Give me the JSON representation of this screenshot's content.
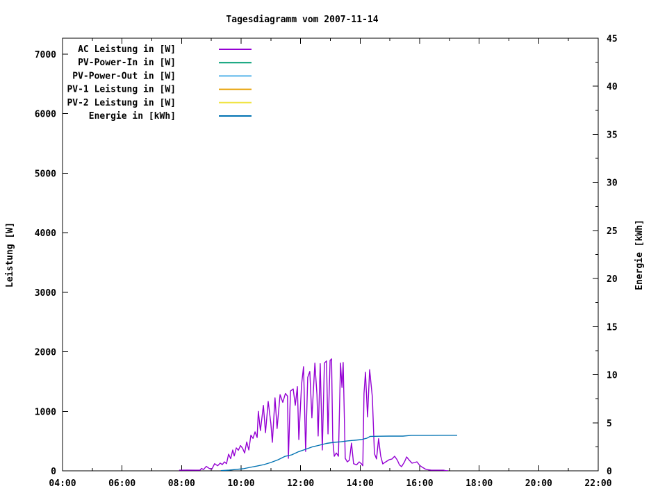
{
  "chart_data": {
    "type": "line",
    "title": "Tagesdiagramm vom 2007-11-14",
    "background_color": "#ffffff",
    "axis_color": "#000000",
    "grid": false,
    "legend_position": "top-left-inside",
    "x_axis": {
      "min": 4,
      "max": 22,
      "major_ticks": [
        {
          "t": 4,
          "label": "04:00"
        },
        {
          "t": 6,
          "label": "06:00"
        },
        {
          "t": 8,
          "label": "08:00"
        },
        {
          "t": 10,
          "label": "10:00"
        },
        {
          "t": 12,
          "label": "12:00"
        },
        {
          "t": 14,
          "label": "14:00"
        },
        {
          "t": 16,
          "label": "16:00"
        },
        {
          "t": 18,
          "label": "18:00"
        },
        {
          "t": 20,
          "label": "20:00"
        },
        {
          "t": 22,
          "label": "22:00"
        }
      ],
      "minor_ticks": [
        5,
        7,
        9,
        11,
        13,
        15,
        17,
        19,
        21
      ]
    },
    "y_axis": {
      "label": "Leistung [W]",
      "min": 0,
      "max": 7268,
      "major_ticks": [
        {
          "v": 0,
          "label": "0"
        },
        {
          "v": 1000,
          "label": "1000"
        },
        {
          "v": 2000,
          "label": "2000"
        },
        {
          "v": 3000,
          "label": "3000"
        },
        {
          "v": 4000,
          "label": "4000"
        },
        {
          "v": 5000,
          "label": "5000"
        },
        {
          "v": 6000,
          "label": "6000"
        },
        {
          "v": 7000,
          "label": "7000"
        }
      ]
    },
    "y2_axis": {
      "label": "Energie [kWh]",
      "min": 0,
      "max": 45,
      "major_ticks": [
        {
          "v": 0,
          "label": "0"
        },
        {
          "v": 5,
          "label": "5"
        },
        {
          "v": 10,
          "label": "10"
        },
        {
          "v": 15,
          "label": "15"
        },
        {
          "v": 20,
          "label": "20"
        },
        {
          "v": 25,
          "label": "25"
        },
        {
          "v": 30,
          "label": "30"
        },
        {
          "v": 35,
          "label": "35"
        },
        {
          "v": 40,
          "label": "40"
        },
        {
          "v": 45,
          "label": "45"
        }
      ],
      "minor_ticks": [
        2.5,
        7.5,
        12.5,
        17.5,
        22.5,
        27.5,
        32.5,
        37.5,
        42.5
      ]
    },
    "legend": [
      {
        "label": "AC Leistung in [W]",
        "color": "#9400d3"
      },
      {
        "label": "PV-Power-In in [W]",
        "color": "#009e73"
      },
      {
        "label": "PV-Power-Out in [W]",
        "color": "#56b4e9"
      },
      {
        "label": "PV-1 Leistung in [W]",
        "color": "#e69f00"
      },
      {
        "label": "PV-2 Leistung in [W]",
        "color": "#f0e442"
      },
      {
        "label": "Energie in [kWh]",
        "color": "#0072b2"
      }
    ],
    "series": [
      {
        "name": "AC Leistung in [W]",
        "yaxis": "y1",
        "color": "#9400d3",
        "points": [
          [
            7.92,
            10
          ],
          [
            8.2,
            12
          ],
          [
            8.45,
            10
          ],
          [
            8.62,
            12
          ],
          [
            8.67,
            40
          ],
          [
            8.74,
            22
          ],
          [
            8.83,
            75
          ],
          [
            8.93,
            40
          ],
          [
            9.02,
            30
          ],
          [
            9.11,
            120
          ],
          [
            9.21,
            85
          ],
          [
            9.3,
            130
          ],
          [
            9.37,
            105
          ],
          [
            9.44,
            150
          ],
          [
            9.51,
            120
          ],
          [
            9.58,
            280
          ],
          [
            9.65,
            205
          ],
          [
            9.72,
            350
          ],
          [
            9.77,
            250
          ],
          [
            9.84,
            385
          ],
          [
            9.91,
            345
          ],
          [
            9.98,
            425
          ],
          [
            10.05,
            380
          ],
          [
            10.12,
            300
          ],
          [
            10.19,
            485
          ],
          [
            10.26,
            350
          ],
          [
            10.33,
            600
          ],
          [
            10.4,
            545
          ],
          [
            10.47,
            655
          ],
          [
            10.54,
            560
          ],
          [
            10.58,
            1000
          ],
          [
            10.65,
            675
          ],
          [
            10.75,
            1100
          ],
          [
            10.82,
            640
          ],
          [
            10.91,
            1165
          ],
          [
            11.0,
            800
          ],
          [
            11.05,
            480
          ],
          [
            11.14,
            1225
          ],
          [
            11.21,
            710
          ],
          [
            11.31,
            1280
          ],
          [
            11.4,
            1150
          ],
          [
            11.49,
            1300
          ],
          [
            11.56,
            1255
          ],
          [
            11.59,
            210
          ],
          [
            11.66,
            1340
          ],
          [
            11.75,
            1375
          ],
          [
            11.82,
            1100
          ],
          [
            11.89,
            1415
          ],
          [
            11.94,
            525
          ],
          [
            12.03,
            1445
          ],
          [
            12.1,
            1750
          ],
          [
            12.17,
            325
          ],
          [
            12.24,
            1570
          ],
          [
            12.31,
            1670
          ],
          [
            12.38,
            890
          ],
          [
            12.48,
            1810
          ],
          [
            12.55,
            1280
          ],
          [
            12.59,
            585
          ],
          [
            12.66,
            1800
          ],
          [
            12.73,
            350
          ],
          [
            12.8,
            1810
          ],
          [
            12.87,
            1845
          ],
          [
            12.92,
            620
          ],
          [
            12.99,
            1855
          ],
          [
            13.04,
            1880
          ],
          [
            13.08,
            520
          ],
          [
            13.13,
            245
          ],
          [
            13.2,
            300
          ],
          [
            13.27,
            245
          ],
          [
            13.34,
            1810
          ],
          [
            13.39,
            1400
          ],
          [
            13.43,
            1820
          ],
          [
            13.5,
            210
          ],
          [
            13.57,
            150
          ],
          [
            13.64,
            180
          ],
          [
            13.71,
            465
          ],
          [
            13.78,
            120
          ],
          [
            13.88,
            100
          ],
          [
            13.97,
            150
          ],
          [
            14.04,
            120
          ],
          [
            14.09,
            85
          ],
          [
            14.13,
            1300
          ],
          [
            14.18,
            1655
          ],
          [
            14.25,
            905
          ],
          [
            14.32,
            1700
          ],
          [
            14.41,
            1240
          ],
          [
            14.48,
            290
          ],
          [
            14.55,
            200
          ],
          [
            14.62,
            540
          ],
          [
            14.69,
            250
          ],
          [
            14.76,
            115
          ],
          [
            14.86,
            150
          ],
          [
            14.97,
            185
          ],
          [
            15.07,
            200
          ],
          [
            15.16,
            245
          ],
          [
            15.25,
            180
          ],
          [
            15.32,
            100
          ],
          [
            15.39,
            70
          ],
          [
            15.49,
            150
          ],
          [
            15.56,
            233
          ],
          [
            15.65,
            180
          ],
          [
            15.74,
            130
          ],
          [
            15.84,
            140
          ],
          [
            15.91,
            150
          ],
          [
            16.0,
            93
          ],
          [
            16.09,
            60
          ],
          [
            16.19,
            30
          ],
          [
            16.28,
            18
          ],
          [
            16.38,
            12
          ],
          [
            16.56,
            10
          ],
          [
            16.8,
            10
          ],
          [
            16.87,
            4
          ],
          [
            16.96,
            2
          ]
        ]
      },
      {
        "name": "Energie in [kWh]",
        "yaxis": "y2",
        "color": "#0072b2",
        "points": [
          [
            9.32,
            0.02
          ],
          [
            9.6,
            0.07
          ],
          [
            9.84,
            0.15
          ],
          [
            10.07,
            0.22
          ],
          [
            10.3,
            0.36
          ],
          [
            10.54,
            0.5
          ],
          [
            10.77,
            0.65
          ],
          [
            11.0,
            0.87
          ],
          [
            11.24,
            1.15
          ],
          [
            11.47,
            1.5
          ],
          [
            11.7,
            1.66
          ],
          [
            11.94,
            2.0
          ],
          [
            12.17,
            2.24
          ],
          [
            12.4,
            2.5
          ],
          [
            12.64,
            2.67
          ],
          [
            12.87,
            2.85
          ],
          [
            13.11,
            2.96
          ],
          [
            13.34,
            3.02
          ],
          [
            13.57,
            3.11
          ],
          [
            13.81,
            3.18
          ],
          [
            14.04,
            3.25
          ],
          [
            14.23,
            3.4
          ],
          [
            14.34,
            3.58
          ],
          [
            14.62,
            3.6
          ],
          [
            14.97,
            3.61
          ],
          [
            15.44,
            3.61
          ],
          [
            15.72,
            3.69
          ],
          [
            16.38,
            3.69
          ],
          [
            17.26,
            3.7
          ]
        ]
      }
    ]
  }
}
